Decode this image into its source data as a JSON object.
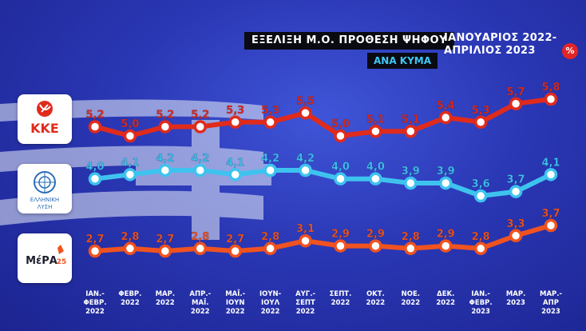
{
  "header": {
    "title": "ΕΞΕΛΙΞΗ Μ.Ο. ΠΡΟΘΕΣΗ ΨΗΦΟΥ",
    "subtitle": "ΑΝΑ ΚΥΜΑ",
    "period_line1": "ΙΑΝΟΥΑΡΙΟΣ 2022-",
    "period_line2": "ΑΠΡΙΛΙΟΣ 2023",
    "percent_badge": "%"
  },
  "logos": {
    "kke": {
      "text": "ΚΚΕ",
      "icon": "hammer-sickle-icon"
    },
    "el": {
      "text_line1": "ΕΛΛΗΝΙΚΗ",
      "text_line2": "ΛΥΣΗ",
      "icon": "compass-emblem-icon"
    },
    "mera": {
      "text": "ΜέΡΑ",
      "sup": "25",
      "icon": "star-emblem-icon"
    }
  },
  "colors": {
    "kke": "#e02b1c",
    "el": "#3ec3ef",
    "mera": "#f0531f",
    "label_text": "#ffffff"
  },
  "chart_data": {
    "type": "line",
    "title": "ΕΞΕΛΙΞΗ Μ.Ο. ΠΡΟΘΕΣΗ ΨΗΦΟΥ",
    "categories": [
      [
        "ΙΑΝ.-",
        "ΦΕΒΡ.",
        "2022"
      ],
      [
        "ΦΕΒΡ.",
        "2022"
      ],
      [
        "ΜΑΡ.",
        "2022"
      ],
      [
        "ΑΠΡ.-",
        "ΜΑΪ.",
        "2022"
      ],
      [
        "ΜΑΪ.-",
        "ΙΟΥΝ",
        "2022"
      ],
      [
        "ΙΟΥΝ-",
        "ΙΟΥΛ",
        "2022"
      ],
      [
        "ΑΥΓ.-",
        "ΣΕΠΤ",
        "2022"
      ],
      [
        "ΣΕΠΤ.",
        "2022"
      ],
      [
        "ΟΚΤ.",
        "2022"
      ],
      [
        "ΝΟΕ.",
        "2022"
      ],
      [
        "ΔΕΚ.",
        "2022"
      ],
      [
        "ΙΑΝ.-",
        "ΦΕΒΡ.",
        "2023"
      ],
      [
        "ΜΑΡ.",
        "2023"
      ],
      [
        "ΜΑΡ.-",
        "ΑΠΡ",
        "2023"
      ]
    ],
    "series": [
      {
        "key": "kke",
        "values": [
          5.2,
          5.0,
          5.2,
          5.2,
          5.3,
          5.3,
          5.5,
          5.0,
          5.1,
          5.1,
          5.4,
          5.3,
          5.7,
          5.8
        ],
        "labels": [
          "5,2",
          "5,0",
          "5,2",
          "5,2",
          "5,3",
          "5,3",
          "5,5",
          "5,0",
          "5,1",
          "5,1",
          "5,4",
          "5,3",
          "5,7",
          "5,8"
        ]
      },
      {
        "key": "el",
        "values": [
          4.0,
          4.1,
          4.2,
          4.2,
          4.1,
          4.2,
          4.2,
          4.0,
          4.0,
          3.9,
          3.9,
          3.6,
          3.7,
          4.1
        ],
        "labels": [
          "4,0",
          "4,1",
          "4,2",
          "4,2",
          "4,1",
          "4,2",
          "4,2",
          "4,0",
          "4,0",
          "3,9",
          "3,9",
          "3,6",
          "3,7",
          "4,1"
        ]
      },
      {
        "key": "mera",
        "values": [
          2.7,
          2.8,
          2.7,
          2.8,
          2.7,
          2.8,
          3.1,
          2.9,
          2.9,
          2.8,
          2.9,
          2.8,
          3.3,
          3.7
        ],
        "labels": [
          "2,7",
          "2,8",
          "2,7",
          "2,8",
          "2,7",
          "2,8",
          "3,1",
          "2,9",
          "2,9",
          "2,8",
          "2,9",
          "2,8",
          "3,3",
          "3,7"
        ]
      }
    ]
  }
}
